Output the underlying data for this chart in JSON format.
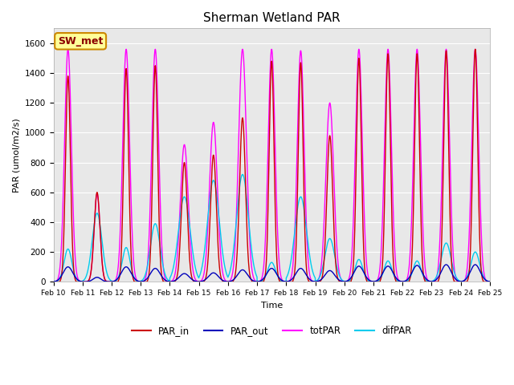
{
  "title": "Sherman Wetland PAR",
  "ylabel": "PAR (umol/m2/s)",
  "xlabel": "Time",
  "ylim": [
    0,
    1700
  ],
  "yticks": [
    0,
    200,
    400,
    600,
    800,
    1000,
    1200,
    1400,
    1600
  ],
  "xtick_labels": [
    "Feb 10",
    "Feb 11",
    "Feb 12",
    "Feb 13",
    "Feb 14",
    "Feb 15",
    "Feb 16",
    "Feb 17",
    "Feb 18",
    "Feb 19",
    "Feb 20",
    "Feb 21",
    "Feb 22",
    "Feb 23",
    "Feb 24",
    "Feb 25"
  ],
  "background_color": "#e8e8e8",
  "figure_bg": "#ffffff",
  "annotation_label": "SW_met",
  "annotation_bg": "#ffff99",
  "annotation_border": "#cc8800",
  "line_colors": {
    "PAR_in": "#cc0000",
    "PAR_out": "#0000bb",
    "totPAR": "#ff00ff",
    "difPAR": "#00ccee"
  },
  "day_peaks": {
    "PAR_in": [
      1380,
      600,
      1430,
      1450,
      800,
      850,
      1100,
      1480,
      1470,
      980,
      1500,
      1530,
      1530,
      1550,
      1560
    ],
    "totPAR": [
      1560,
      590,
      1560,
      1560,
      920,
      1070,
      1560,
      1560,
      1550,
      1200,
      1560,
      1560,
      1560,
      1560,
      1560
    ],
    "PAR_out": [
      100,
      30,
      100,
      90,
      55,
      60,
      80,
      90,
      90,
      75,
      105,
      105,
      110,
      115,
      115
    ],
    "difPAR": [
      220,
      460,
      230,
      390,
      570,
      680,
      720,
      130,
      570,
      290,
      150,
      140,
      140,
      260,
      200
    ]
  },
  "day_peaks_width": {
    "PAR_in": [
      0.25,
      0.3,
      0.25,
      0.25,
      0.3,
      0.3,
      0.3,
      0.25,
      0.25,
      0.3,
      0.25,
      0.25,
      0.25,
      0.25,
      0.25
    ],
    "totPAR": [
      0.35,
      0.3,
      0.35,
      0.35,
      0.4,
      0.4,
      0.4,
      0.35,
      0.35,
      0.4,
      0.35,
      0.35,
      0.35,
      0.35,
      0.35
    ],
    "PAR_out": [
      0.5,
      0.4,
      0.5,
      0.5,
      0.5,
      0.5,
      0.5,
      0.5,
      0.5,
      0.5,
      0.5,
      0.5,
      0.5,
      0.5,
      0.5
    ],
    "difPAR": [
      0.4,
      0.5,
      0.4,
      0.5,
      0.6,
      0.6,
      0.6,
      0.4,
      0.6,
      0.5,
      0.4,
      0.4,
      0.4,
      0.5,
      0.45
    ]
  }
}
